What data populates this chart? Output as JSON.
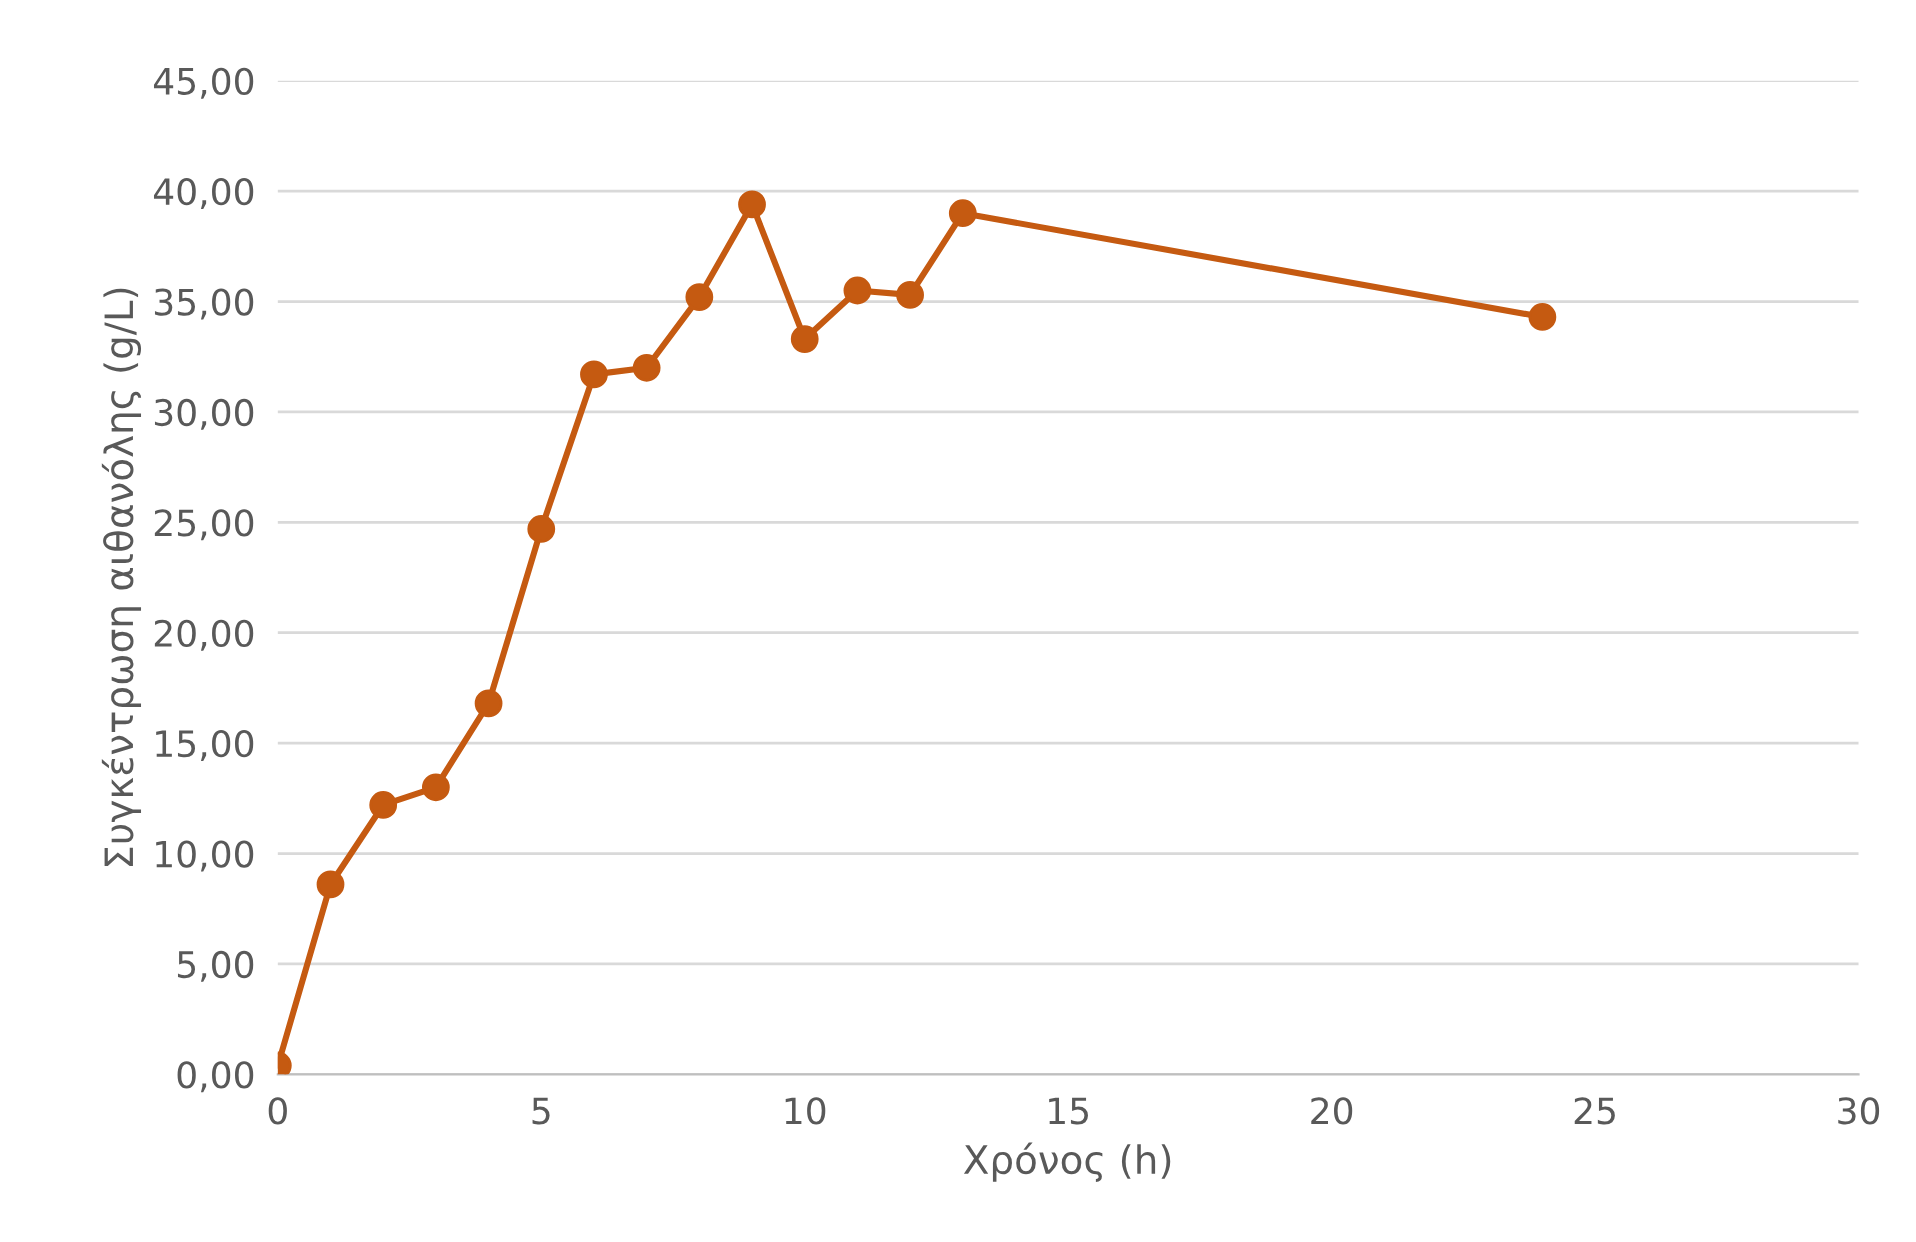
{
  "chart_data": {
    "type": "line",
    "xlabel": "Χρόνος (h)",
    "ylabel": "Συγκέντρωση αιθανόλης (g/L)",
    "x": [
      0,
      1,
      2,
      3,
      4,
      5,
      6,
      7,
      8,
      9,
      10,
      11,
      12,
      13,
      24
    ],
    "series": [
      {
        "color": "#c55a11",
        "values": [
          0.4,
          8.6,
          12.2,
          13.0,
          16.8,
          24.7,
          31.7,
          32.0,
          35.2,
          39.4,
          33.3,
          35.5,
          35.3,
          39.0,
          34.3
        ]
      }
    ],
    "xlim": [
      0,
      30
    ],
    "xticks": [
      0,
      5,
      10,
      15,
      20,
      25,
      30
    ],
    "ylim": [
      0,
      45
    ],
    "yticks": [
      {
        "value": 0,
        "label": "0,00"
      },
      {
        "value": 5,
        "label": "5,00"
      },
      {
        "value": 10,
        "label": "10,00"
      },
      {
        "value": 15,
        "label": "15,00"
      },
      {
        "value": 20,
        "label": "20,00"
      },
      {
        "value": 25,
        "label": "25,00"
      },
      {
        "value": 30,
        "label": "30,00"
      },
      {
        "value": 35,
        "label": "35,00"
      },
      {
        "value": 40,
        "label": "40,00"
      },
      {
        "value": 45,
        "label": "45,00"
      }
    ],
    "grid": "y",
    "marker": "circle",
    "line_style": "solid",
    "legend": false
  }
}
